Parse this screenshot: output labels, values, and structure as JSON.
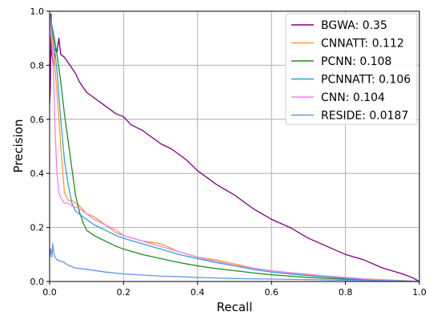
{
  "chart_data": {
    "type": "line",
    "title": "",
    "xlabel": "Recall",
    "ylabel": "Precision",
    "xlim": [
      0,
      1
    ],
    "ylim": [
      0,
      1
    ],
    "xticks": [
      "0.0",
      "0.2",
      "0.4",
      "0.6",
      "0.8",
      "1.0"
    ],
    "yticks": [
      "0.0",
      "0.2",
      "0.4",
      "0.6",
      "0.8",
      "1.0"
    ],
    "grid": true,
    "legend_position": "top-right",
    "series": [
      {
        "name": "BGWA: 0.35",
        "color": "#800080",
        "points": [
          [
            0.0,
            0.66
          ],
          [
            0.002,
            0.72
          ],
          [
            0.004,
            0.99
          ],
          [
            0.006,
            0.84
          ],
          [
            0.01,
            0.8
          ],
          [
            0.015,
            0.86
          ],
          [
            0.02,
            0.85
          ],
          [
            0.025,
            0.9
          ],
          [
            0.03,
            0.84
          ],
          [
            0.04,
            0.83
          ],
          [
            0.05,
            0.81
          ],
          [
            0.06,
            0.79
          ],
          [
            0.07,
            0.77
          ],
          [
            0.08,
            0.74
          ],
          [
            0.09,
            0.72
          ],
          [
            0.1,
            0.7
          ],
          [
            0.12,
            0.68
          ],
          [
            0.14,
            0.66
          ],
          [
            0.16,
            0.64
          ],
          [
            0.18,
            0.62
          ],
          [
            0.2,
            0.61
          ],
          [
            0.22,
            0.58
          ],
          [
            0.25,
            0.56
          ],
          [
            0.28,
            0.53
          ],
          [
            0.3,
            0.51
          ],
          [
            0.33,
            0.49
          ],
          [
            0.35,
            0.47
          ],
          [
            0.37,
            0.45
          ],
          [
            0.4,
            0.41
          ],
          [
            0.43,
            0.38
          ],
          [
            0.45,
            0.36
          ],
          [
            0.5,
            0.32
          ],
          [
            0.55,
            0.27
          ],
          [
            0.6,
            0.23
          ],
          [
            0.65,
            0.2
          ],
          [
            0.7,
            0.16
          ],
          [
            0.75,
            0.13
          ],
          [
            0.8,
            0.1
          ],
          [
            0.85,
            0.08
          ],
          [
            0.9,
            0.05
          ],
          [
            0.95,
            0.03
          ],
          [
            0.98,
            0.015
          ],
          [
            1.0,
            0.0
          ]
        ]
      },
      {
        "name": "CNNATT: 0.112",
        "color": "#ff9f1c",
        "points": [
          [
            0.0,
            0.99
          ],
          [
            0.01,
            0.86
          ],
          [
            0.02,
            0.7
          ],
          [
            0.03,
            0.5
          ],
          [
            0.04,
            0.33
          ],
          [
            0.05,
            0.3
          ],
          [
            0.06,
            0.3
          ],
          [
            0.08,
            0.28
          ],
          [
            0.1,
            0.25
          ],
          [
            0.12,
            0.24
          ],
          [
            0.15,
            0.21
          ],
          [
            0.18,
            0.18
          ],
          [
            0.2,
            0.17
          ],
          [
            0.25,
            0.15
          ],
          [
            0.3,
            0.14
          ],
          [
            0.35,
            0.11
          ],
          [
            0.4,
            0.09
          ],
          [
            0.45,
            0.08
          ],
          [
            0.5,
            0.065
          ],
          [
            0.55,
            0.05
          ],
          [
            0.6,
            0.04
          ],
          [
            0.65,
            0.032
          ],
          [
            0.7,
            0.025
          ],
          [
            0.75,
            0.02
          ],
          [
            0.8,
            0.015
          ],
          [
            0.85,
            0.01
          ],
          [
            0.9,
            0.007
          ],
          [
            0.95,
            0.004
          ],
          [
            1.0,
            0.0
          ]
        ]
      },
      {
        "name": "PCNN: 0.108",
        "color": "#228b22",
        "points": [
          [
            0.0,
            0.99
          ],
          [
            0.01,
            0.92
          ],
          [
            0.02,
            0.84
          ],
          [
            0.03,
            0.74
          ],
          [
            0.04,
            0.62
          ],
          [
            0.05,
            0.52
          ],
          [
            0.06,
            0.42
          ],
          [
            0.07,
            0.32
          ],
          [
            0.08,
            0.26
          ],
          [
            0.09,
            0.22
          ],
          [
            0.1,
            0.19
          ],
          [
            0.12,
            0.17
          ],
          [
            0.15,
            0.15
          ],
          [
            0.18,
            0.13
          ],
          [
            0.2,
            0.12
          ],
          [
            0.25,
            0.1
          ],
          [
            0.3,
            0.085
          ],
          [
            0.35,
            0.07
          ],
          [
            0.4,
            0.058
          ],
          [
            0.45,
            0.048
          ],
          [
            0.5,
            0.04
          ],
          [
            0.55,
            0.032
          ],
          [
            0.6,
            0.025
          ],
          [
            0.65,
            0.02
          ],
          [
            0.7,
            0.015
          ],
          [
            0.75,
            0.012
          ],
          [
            0.8,
            0.009
          ],
          [
            0.85,
            0.006
          ],
          [
            0.9,
            0.004
          ],
          [
            0.95,
            0.002
          ],
          [
            1.0,
            0.0
          ]
        ]
      },
      {
        "name": "PCNNATT: 0.106",
        "color": "#29a3e0",
        "points": [
          [
            0.0,
            0.99
          ],
          [
            0.01,
            0.9
          ],
          [
            0.02,
            0.78
          ],
          [
            0.03,
            0.6
          ],
          [
            0.04,
            0.45
          ],
          [
            0.05,
            0.36
          ],
          [
            0.06,
            0.29
          ],
          [
            0.07,
            0.26
          ],
          [
            0.08,
            0.25
          ],
          [
            0.1,
            0.23
          ],
          [
            0.12,
            0.21
          ],
          [
            0.15,
            0.19
          ],
          [
            0.18,
            0.17
          ],
          [
            0.2,
            0.16
          ],
          [
            0.25,
            0.14
          ],
          [
            0.3,
            0.12
          ],
          [
            0.35,
            0.1
          ],
          [
            0.4,
            0.085
          ],
          [
            0.45,
            0.07
          ],
          [
            0.5,
            0.058
          ],
          [
            0.55,
            0.045
          ],
          [
            0.6,
            0.035
          ],
          [
            0.65,
            0.028
          ],
          [
            0.7,
            0.022
          ],
          [
            0.75,
            0.017
          ],
          [
            0.8,
            0.012
          ],
          [
            0.85,
            0.008
          ],
          [
            0.9,
            0.005
          ],
          [
            0.95,
            0.003
          ],
          [
            1.0,
            0.0
          ]
        ]
      },
      {
        "name": "CNN: 0.104",
        "color": "#ee82ee",
        "points": [
          [
            0.0,
            0.99
          ],
          [
            0.01,
            0.8
          ],
          [
            0.015,
            0.55
          ],
          [
            0.02,
            0.4
          ],
          [
            0.025,
            0.33
          ],
          [
            0.03,
            0.31
          ],
          [
            0.04,
            0.29
          ],
          [
            0.05,
            0.29
          ],
          [
            0.06,
            0.28
          ],
          [
            0.08,
            0.27
          ],
          [
            0.1,
            0.25
          ],
          [
            0.12,
            0.23
          ],
          [
            0.15,
            0.21
          ],
          [
            0.18,
            0.19
          ],
          [
            0.2,
            0.17
          ],
          [
            0.25,
            0.15
          ],
          [
            0.3,
            0.13
          ],
          [
            0.35,
            0.11
          ],
          [
            0.4,
            0.09
          ],
          [
            0.45,
            0.075
          ],
          [
            0.5,
            0.06
          ],
          [
            0.55,
            0.05
          ],
          [
            0.6,
            0.04
          ],
          [
            0.65,
            0.033
          ],
          [
            0.7,
            0.027
          ],
          [
            0.75,
            0.02
          ],
          [
            0.8,
            0.015
          ],
          [
            0.85,
            0.01
          ],
          [
            0.9,
            0.006
          ],
          [
            0.95,
            0.003
          ],
          [
            1.0,
            0.0
          ]
        ]
      },
      {
        "name": "RESIDE: 0.0187",
        "color": "#6495ed",
        "points": [
          [
            0.0,
            0.09
          ],
          [
            0.003,
            0.12
          ],
          [
            0.006,
            0.09
          ],
          [
            0.008,
            0.14
          ],
          [
            0.01,
            0.12
          ],
          [
            0.012,
            0.1
          ],
          [
            0.015,
            0.09
          ],
          [
            0.02,
            0.08
          ],
          [
            0.03,
            0.075
          ],
          [
            0.04,
            0.07
          ],
          [
            0.05,
            0.06
          ],
          [
            0.07,
            0.05
          ],
          [
            0.1,
            0.045
          ],
          [
            0.15,
            0.035
          ],
          [
            0.2,
            0.028
          ],
          [
            0.25,
            0.024
          ],
          [
            0.3,
            0.02
          ],
          [
            0.35,
            0.018
          ],
          [
            0.4,
            0.015
          ],
          [
            0.45,
            0.013
          ],
          [
            0.5,
            0.011
          ],
          [
            0.6,
            0.009
          ],
          [
            0.7,
            0.007
          ],
          [
            0.8,
            0.005
          ],
          [
            0.9,
            0.003
          ],
          [
            1.0,
            0.0
          ]
        ]
      }
    ]
  }
}
